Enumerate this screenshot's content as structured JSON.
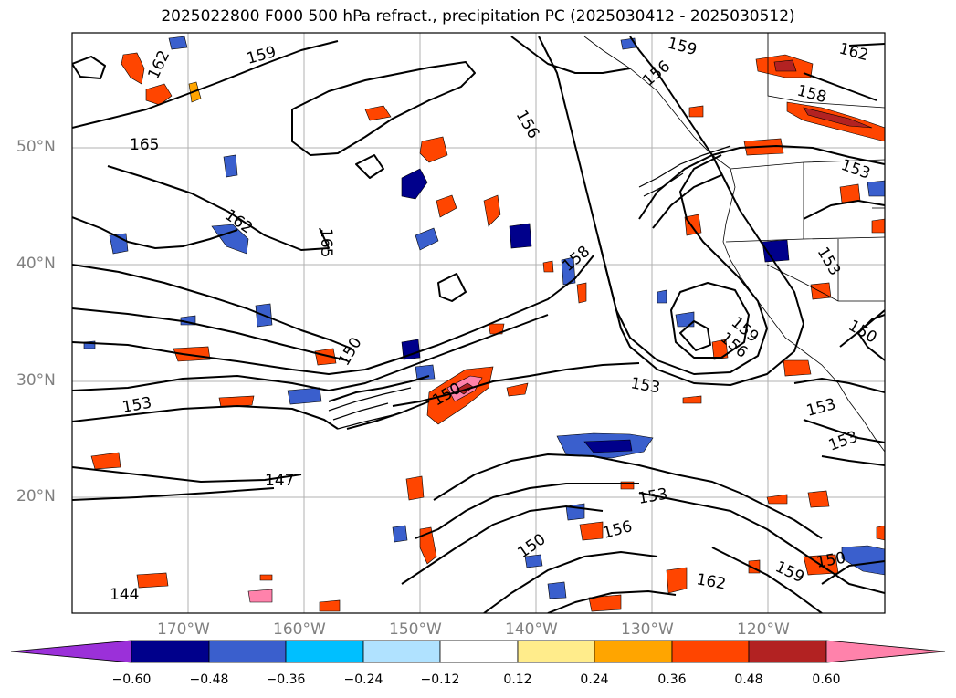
{
  "title": "2025022800 F000 500 hPa refract., precipitation PC (2025030412 - 2025030512)",
  "lat_labels": [
    "50°N",
    "40°N",
    "30°N",
    "20°N"
  ],
  "lon_labels": [
    "170°W",
    "160°W",
    "150°W",
    "140°W",
    "130°W",
    "120°W"
  ],
  "contour_labels": [
    "159",
    "162",
    "159",
    "156",
    "162",
    "158",
    "165",
    "156",
    "162",
    "165",
    "153",
    "153",
    "158",
    "159",
    "156",
    "150",
    "153",
    "150",
    "153",
    "153",
    "147",
    "153",
    "153",
    "156",
    "162",
    "150",
    "159",
    "144",
    "150",
    "150"
  ],
  "colorbar": {
    "colors": [
      "#9b30d9",
      "#00008b",
      "#3a5fcd",
      "#00bfff",
      "#b0e2ff",
      "#ffffff",
      "#ffec8b",
      "#ffa500",
      "#ff4500",
      "#b22222",
      "#ff82ab"
    ],
    "ticks": [
      "−0.60",
      "−0.48",
      "−0.36",
      "−0.24",
      "−0.12",
      "0.12",
      "0.24",
      "0.36",
      "0.48",
      "0.60"
    ]
  }
}
